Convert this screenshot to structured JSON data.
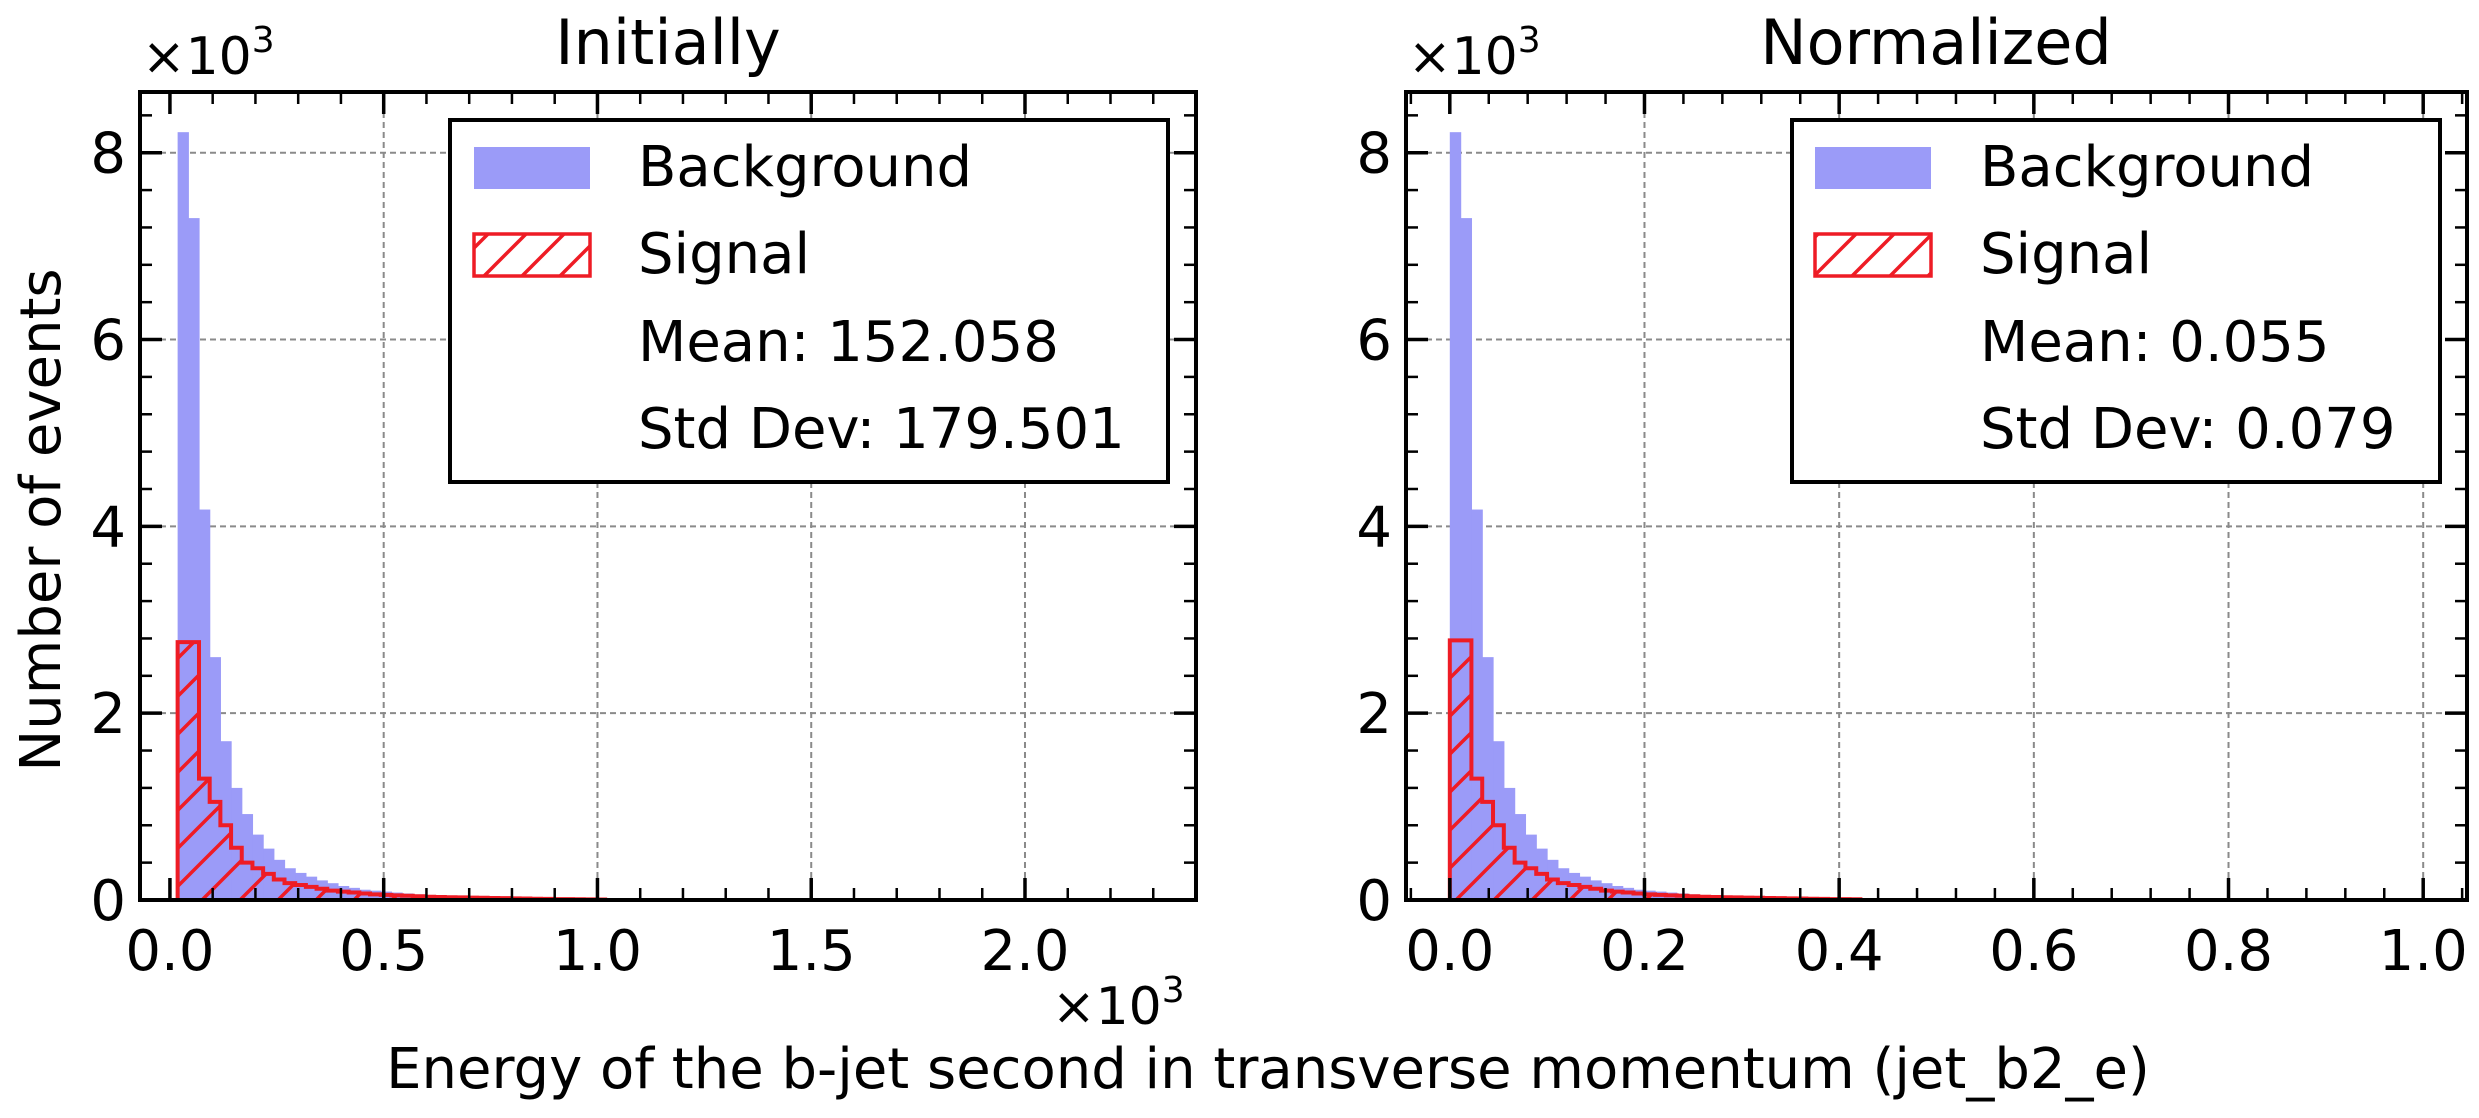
{
  "figure": {
    "ylabel": "Number of events",
    "xlabel": "Energy of the b-jet second in transverse momentum (jet_b2_e)"
  },
  "chart_data": [
    {
      "type": "histogram",
      "title": "Initially",
      "xlim": [
        -0.07,
        2.4
      ],
      "ylim": [
        0,
        8.65
      ],
      "x_multiplier_label": "×10",
      "x_multiplier_exp": "3",
      "y_multiplier_label": "×10",
      "y_multiplier_exp": "3",
      "xticks": [
        0.0,
        0.5,
        1.0,
        1.5,
        2.0
      ],
      "xtick_labels": [
        "0.0",
        "0.5",
        "1.0",
        "1.5",
        "2.0"
      ],
      "yticks": [
        0,
        2,
        4,
        6,
        8
      ],
      "ytick_labels": [
        "0",
        "2",
        "4",
        "6",
        "8"
      ],
      "grid": true,
      "legend_position": "top-right",
      "bin_start": 0.018,
      "bin_width": 0.025,
      "series": [
        {
          "name": "Background",
          "style": "filled",
          "color": "#9b9bf8",
          "values": [
            8.22,
            7.3,
            4.18,
            2.6,
            1.7,
            1.2,
            0.92,
            0.7,
            0.55,
            0.43,
            0.34,
            0.29,
            0.25,
            0.21,
            0.18,
            0.15,
            0.13,
            0.11,
            0.1,
            0.09,
            0.08,
            0.07,
            0.06,
            0.05,
            0.045,
            0.04,
            0.035,
            0.03,
            0.027,
            0.024,
            0.021,
            0.019,
            0.017,
            0.015,
            0.013,
            0.012,
            0.01,
            0.009,
            0.008,
            0.007,
            0.006,
            0.005
          ]
        },
        {
          "name": "Signal",
          "style": "hatched-step",
          "color": "#ee1c25",
          "values": [
            2.76,
            2.76,
            1.3,
            1.05,
            0.8,
            0.56,
            0.4,
            0.34,
            0.28,
            0.22,
            0.18,
            0.16,
            0.14,
            0.12,
            0.1,
            0.09,
            0.08,
            0.07,
            0.06,
            0.055,
            0.05,
            0.045,
            0.04,
            0.035,
            0.032,
            0.03,
            0.028,
            0.026,
            0.024,
            0.022,
            0.02,
            0.018,
            0.016,
            0.014,
            0.012,
            0.01,
            0.009,
            0.008,
            0.007,
            0.006
          ]
        }
      ],
      "legend_stats": [
        "Mean: 152.058",
        "Std Dev: 179.501"
      ]
    },
    {
      "type": "histogram",
      "title": "Normalized",
      "xlim": [
        -0.045,
        1.045
      ],
      "ylim": [
        0,
        8.65
      ],
      "y_multiplier_label": "×10",
      "y_multiplier_exp": "3",
      "xticks": [
        0.0,
        0.2,
        0.4,
        0.6,
        0.8,
        1.0
      ],
      "xtick_labels": [
        "0.0",
        "0.2",
        "0.4",
        "0.6",
        "0.8",
        "1.0"
      ],
      "yticks": [
        0,
        2,
        4,
        6,
        8
      ],
      "ytick_labels": [
        "0",
        "2",
        "4",
        "6",
        "8"
      ],
      "grid": true,
      "legend_position": "top-right",
      "bin_start": 0.0,
      "bin_width": 0.0111,
      "series": [
        {
          "name": "Background",
          "style": "filled",
          "color": "#9b9bf8",
          "values": [
            8.22,
            7.3,
            4.18,
            2.6,
            1.7,
            1.2,
            0.92,
            0.7,
            0.55,
            0.43,
            0.34,
            0.29,
            0.25,
            0.21,
            0.18,
            0.15,
            0.13,
            0.11,
            0.1,
            0.09,
            0.08,
            0.07,
            0.06,
            0.05,
            0.045,
            0.04,
            0.035,
            0.03,
            0.027,
            0.024,
            0.021,
            0.019,
            0.017,
            0.015,
            0.013,
            0.012,
            0.01,
            0.009,
            0.008,
            0.007,
            0.006,
            0.005,
            0.004,
            0.004
          ]
        },
        {
          "name": "Signal",
          "style": "hatched-step",
          "color": "#ee1c25",
          "values": [
            2.78,
            2.78,
            1.3,
            1.05,
            0.8,
            0.56,
            0.4,
            0.34,
            0.28,
            0.22,
            0.18,
            0.16,
            0.14,
            0.12,
            0.1,
            0.09,
            0.08,
            0.07,
            0.06,
            0.055,
            0.05,
            0.045,
            0.04,
            0.035,
            0.032,
            0.03,
            0.028,
            0.026,
            0.024,
            0.022,
            0.02,
            0.018,
            0.016,
            0.014,
            0.012,
            0.01,
            0.009,
            0.008
          ]
        }
      ],
      "legend_stats": [
        "Mean: 0.055",
        "Std Dev: 0.079"
      ]
    }
  ]
}
